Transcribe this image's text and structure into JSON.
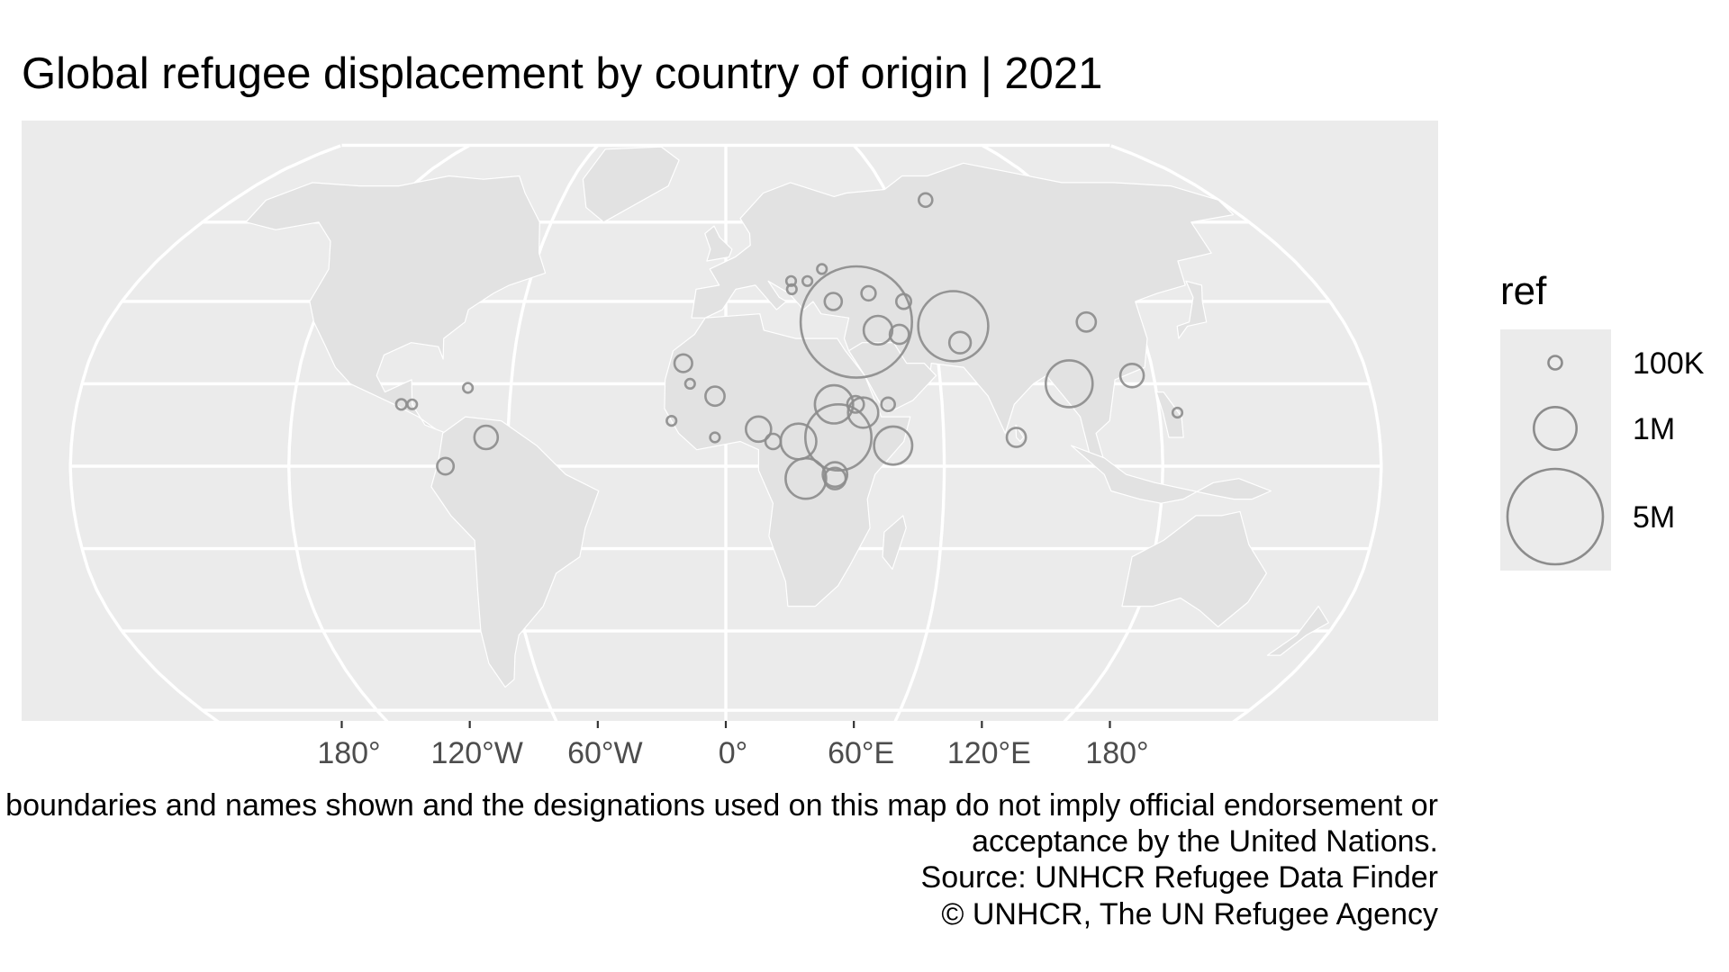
{
  "chart_data": {
    "type": "map",
    "projection": "Robinson",
    "title": "Global refugee displacement by country of origin | 2021",
    "graticule_longitudes": [
      -180,
      -120,
      -60,
      0,
      60,
      120,
      180
    ],
    "graticule_latitudes": [
      -60,
      -40,
      -20,
      0,
      20,
      40,
      60
    ],
    "x_tick_labels": [
      "180°",
      "120°W",
      "60°W",
      "0°",
      "60°E",
      "120°E",
      "180°"
    ],
    "legend": {
      "title": "ref",
      "entries": [
        {
          "label": "100K",
          "value": 100000
        },
        {
          "label": "1M",
          "value": 1000000
        },
        {
          "label": "5M",
          "value": 5000000
        }
      ]
    },
    "caption": [
      "The boundaries and names shown and the designations used on this map do not imply official endorsement or",
      "acceptance by the United Nations.",
      "Source: UNHCR Refugee Data Finder",
      "© UNHCR, The UN Refugee Agency"
    ],
    "points": [
      {
        "lon": 38,
        "lat": 35,
        "ref": 6800000
      },
      {
        "lon": 66,
        "lat": 34,
        "ref": 2700000
      },
      {
        "lon": 31,
        "lat": 7,
        "ref": 2400000
      },
      {
        "lon": 96,
        "lat": 20,
        "ref": 1200000
      },
      {
        "lon": 22,
        "lat": -3,
        "ref": 900000
      },
      {
        "lon": 46,
        "lat": 5,
        "ref": 800000
      },
      {
        "lon": 30,
        "lat": 15,
        "ref": 800000
      },
      {
        "lon": 20,
        "lat": 6,
        "ref": 700000
      },
      {
        "lon": 38,
        "lat": 13,
        "ref": 500000
      },
      {
        "lon": 44,
        "lat": 33,
        "ref": 450000
      },
      {
        "lon": 9,
        "lat": 9,
        "ref": 350000
      },
      {
        "lon": 30,
        "lat": -2,
        "ref": 330000
      },
      {
        "lon": -66,
        "lat": 7,
        "ref": 300000
      },
      {
        "lon": 114,
        "lat": 22,
        "ref": 300000
      },
      {
        "lon": 30,
        "lat": -3,
        "ref": 250000
      },
      {
        "lon": 67,
        "lat": 30,
        "ref": 250000
      },
      {
        "lon": 50,
        "lat": 32,
        "ref": 200000
      },
      {
        "lon": -3,
        "lat": 17,
        "ref": 200000
      },
      {
        "lon": 80,
        "lat": 7,
        "ref": 200000
      },
      {
        "lon": 105,
        "lat": 35,
        "ref": 200000
      },
      {
        "lon": -12,
        "lat": 25,
        "ref": 170000
      },
      {
        "lon": 32,
        "lat": 40,
        "ref": 160000
      },
      {
        "lon": 36,
        "lat": 15,
        "ref": 150000
      },
      {
        "lon": -77,
        "lat": 0,
        "ref": 150000
      },
      {
        "lon": 13,
        "lat": 6,
        "ref": 130000
      },
      {
        "lon": 53,
        "lat": 40,
        "ref": 120000
      },
      {
        "lon": 43,
        "lat": 42,
        "ref": 110000
      },
      {
        "lon": 73,
        "lat": 66,
        "ref": 100000
      },
      {
        "lon": 45,
        "lat": 15,
        "ref": 100000
      },
      {
        "lon": -90,
        "lat": 15,
        "ref": 60000
      },
      {
        "lon": -87,
        "lat": 15,
        "ref": 50000
      },
      {
        "lon": -72,
        "lat": 19,
        "ref": 50000
      },
      {
        "lon": -10,
        "lat": 20,
        "ref": 50000
      },
      {
        "lon": -15,
        "lat": 11,
        "ref": 50000
      },
      {
        "lon": -3,
        "lat": 7,
        "ref": 50000
      },
      {
        "lon": 25,
        "lat": 45,
        "ref": 50000
      },
      {
        "lon": 20,
        "lat": 45,
        "ref": 50000
      },
      {
        "lon": 20,
        "lat": 43,
        "ref": 50000
      },
      {
        "lon": 30,
        "lat": 48,
        "ref": 50000
      },
      {
        "lon": 125,
        "lat": 13,
        "ref": 50000
      }
    ]
  },
  "colors": {
    "panel": "#ebebeb",
    "grid": "#ffffff",
    "land": "#e2e2e2",
    "border": "#ffffff",
    "circle": "#8c8c8c",
    "tick_text": "#4d4d4d"
  }
}
